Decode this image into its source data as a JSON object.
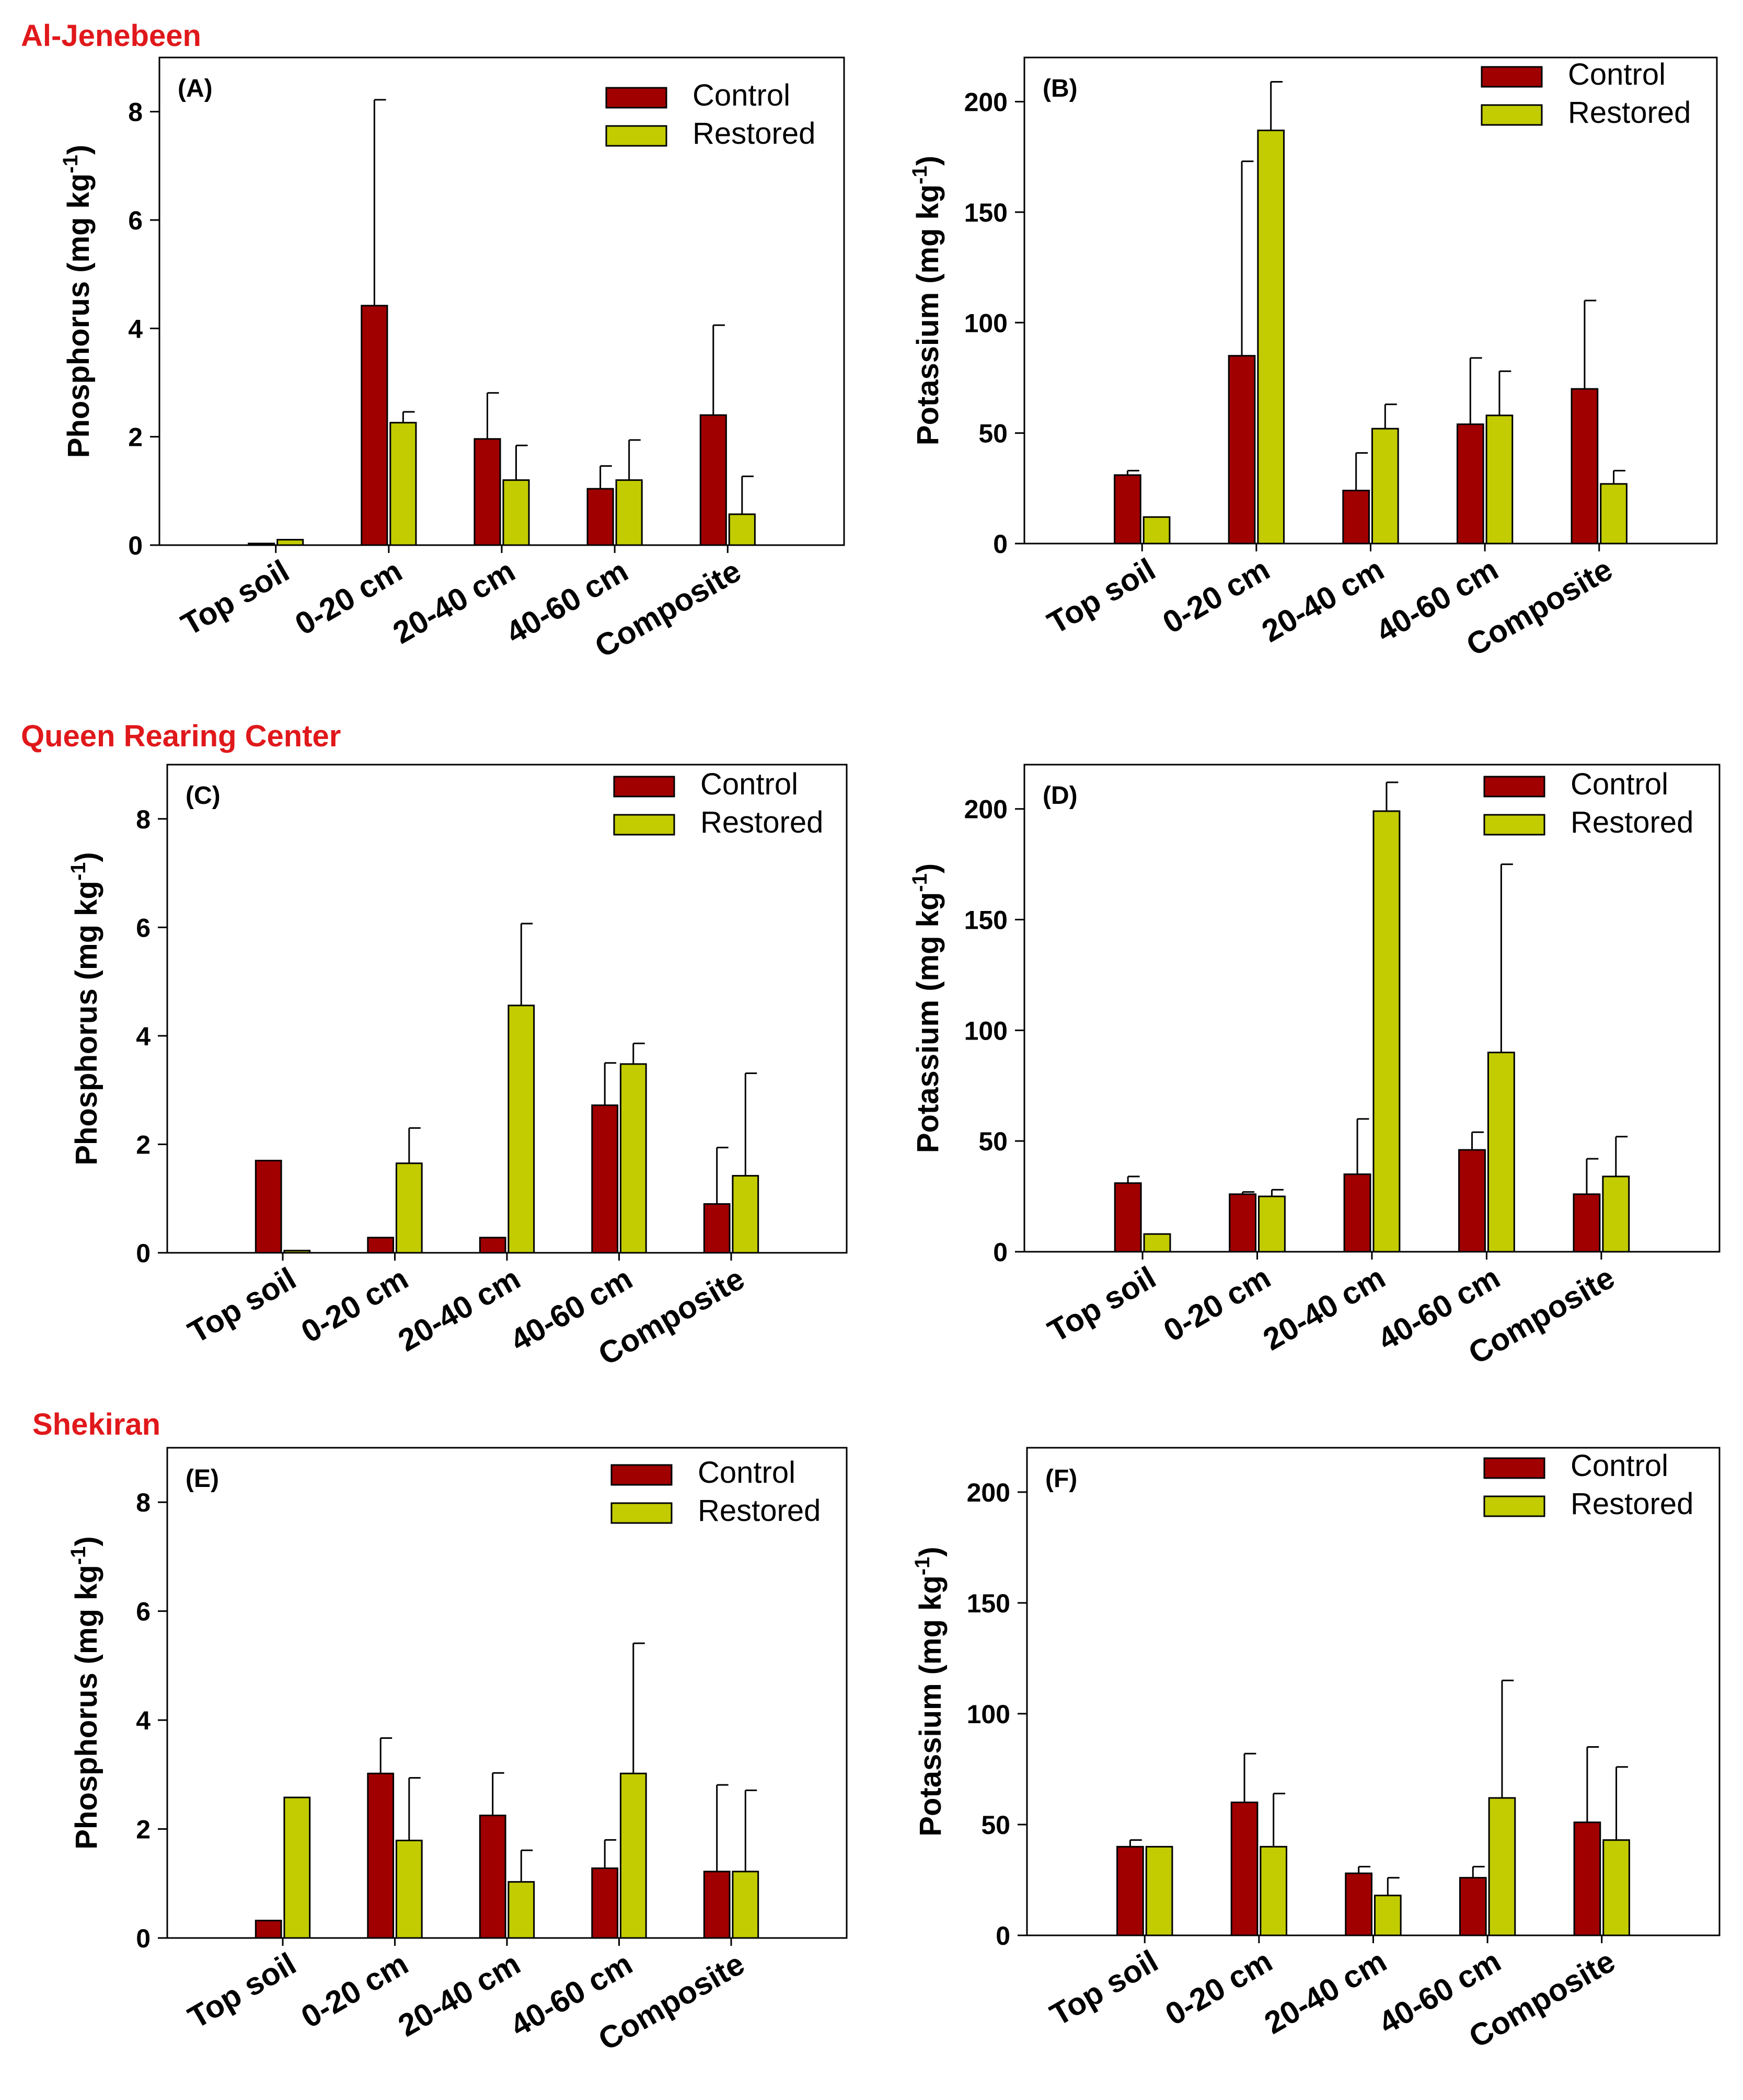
{
  "colors": {
    "control": "#a00000",
    "restored": "#c2cc00",
    "title": "#e0181b"
  },
  "chart_data": [
    {
      "type": "bar",
      "panel": "(A)",
      "site": "Al-Jenebeen",
      "ylabel": "Phosphorus (mg kg",
      "ylabel_unit_exp": "-1",
      "ylabel_close": ")",
      "ylim": [
        0,
        9
      ],
      "yticks": [
        0,
        2,
        4,
        6,
        8
      ],
      "categories": [
        "Top soil",
        "0-20 cm",
        "20-40 cm",
        "40-60 cm",
        "Composite"
      ],
      "legend": [
        "Control",
        "Restored"
      ],
      "series": [
        {
          "name": "Control",
          "values": [
            0.03,
            4.42,
            1.96,
            1.04,
            2.4
          ],
          "errors": [
            0,
            3.8,
            0.85,
            0.42,
            1.66
          ]
        },
        {
          "name": "Restored",
          "values": [
            0.1,
            2.26,
            1.2,
            1.2,
            0.57
          ],
          "errors": [
            0,
            0.2,
            0.64,
            0.74,
            0.7
          ]
        }
      ]
    },
    {
      "type": "bar",
      "panel": "(B)",
      "site": "",
      "ylabel": "Potassium (mg kg",
      "ylabel_unit_exp": "-1",
      "ylabel_close": ")",
      "ylim": [
        0,
        220
      ],
      "yticks": [
        0,
        50,
        100,
        150,
        200
      ],
      "categories": [
        "Top soil",
        "0-20 cm",
        "20-40 cm",
        "40-60 cm",
        "Composite"
      ],
      "legend": [
        "Control",
        "Restored"
      ],
      "series": [
        {
          "name": "Control",
          "values": [
            31,
            85,
            24,
            54,
            70
          ],
          "errors": [
            2,
            88,
            17,
            30,
            40
          ]
        },
        {
          "name": "Restored",
          "values": [
            12,
            187,
            52,
            58,
            27
          ],
          "errors": [
            0,
            22,
            11,
            20,
            6
          ]
        }
      ]
    },
    {
      "type": "bar",
      "panel": "(C)",
      "site": "Queen Rearing Center",
      "ylabel": "Phosphorus (mg kg",
      "ylabel_unit_exp": "-1",
      "ylabel_close": ")",
      "ylim": [
        0,
        9
      ],
      "yticks": [
        0,
        2,
        4,
        6,
        8
      ],
      "categories": [
        "Top soil",
        "0-20 cm",
        "20-40 cm",
        "40-60 cm",
        "Composite"
      ],
      "legend": [
        "Control",
        "Restored"
      ],
      "series": [
        {
          "name": "Control",
          "values": [
            1.7,
            0.28,
            0.28,
            2.72,
            0.9
          ],
          "errors": [
            0,
            0,
            0,
            0.78,
            1.04
          ]
        },
        {
          "name": "Restored",
          "values": [
            0.04,
            1.65,
            4.56,
            3.48,
            1.42
          ],
          "errors": [
            0,
            0.65,
            1.51,
            0.38,
            1.89
          ]
        }
      ]
    },
    {
      "type": "bar",
      "panel": "(D)",
      "site": "",
      "ylabel": "Potassium (mg kg",
      "ylabel_unit_exp": "-1",
      "ylabel_close": ")",
      "ylim": [
        0,
        220
      ],
      "yticks": [
        0,
        50,
        100,
        150,
        200
      ],
      "categories": [
        "Top soil",
        "0-20 cm",
        "20-40 cm",
        "40-60 cm",
        "Composite"
      ],
      "legend": [
        "Control",
        "Restored"
      ],
      "series": [
        {
          "name": "Control",
          "values": [
            31,
            26,
            35,
            46,
            26
          ],
          "errors": [
            3,
            1,
            25,
            8,
            16
          ]
        },
        {
          "name": "Restored",
          "values": [
            8,
            25,
            199,
            90,
            34
          ],
          "errors": [
            0,
            3,
            13,
            85,
            18
          ]
        }
      ]
    },
    {
      "type": "bar",
      "panel": "(E)",
      "site": "Shekiran",
      "ylabel": "Phosphorus (mg kg",
      "ylabel_unit_exp": "-1",
      "ylabel_close": ")",
      "ylim": [
        0,
        9
      ],
      "yticks": [
        0,
        2,
        4,
        6,
        8
      ],
      "categories": [
        "Top soil",
        "0-20 cm",
        "20-40 cm",
        "40-60 cm",
        "Composite"
      ],
      "legend": [
        "Control",
        "Restored"
      ],
      "series": [
        {
          "name": "Control",
          "values": [
            0.32,
            3.02,
            2.25,
            1.28,
            1.22
          ],
          "errors": [
            0,
            0.65,
            0.78,
            0.52,
            1.59
          ]
        },
        {
          "name": "Restored",
          "values": [
            2.58,
            1.79,
            1.03,
            3.02,
            1.22
          ],
          "errors": [
            0,
            1.15,
            0.58,
            2.39,
            1.49
          ]
        }
      ]
    },
    {
      "type": "bar",
      "panel": "(F)",
      "site": "",
      "ylabel": "Potassium (mg kg",
      "ylabel_unit_exp": "-1",
      "ylabel_close": ")",
      "ylim": [
        0,
        220
      ],
      "yticks": [
        0,
        50,
        100,
        150,
        200
      ],
      "categories": [
        "Top soil",
        "0-20 cm",
        "20-40 cm",
        "40-60 cm",
        "Composite"
      ],
      "legend": [
        "Control",
        "Restored"
      ],
      "series": [
        {
          "name": "Control",
          "values": [
            40,
            60,
            28,
            26,
            51
          ],
          "errors": [
            3,
            22,
            3,
            5,
            34
          ]
        },
        {
          "name": "Restored",
          "values": [
            40,
            40,
            18,
            62,
            43
          ],
          "errors": [
            0,
            24,
            8,
            53,
            33
          ]
        }
      ]
    }
  ]
}
